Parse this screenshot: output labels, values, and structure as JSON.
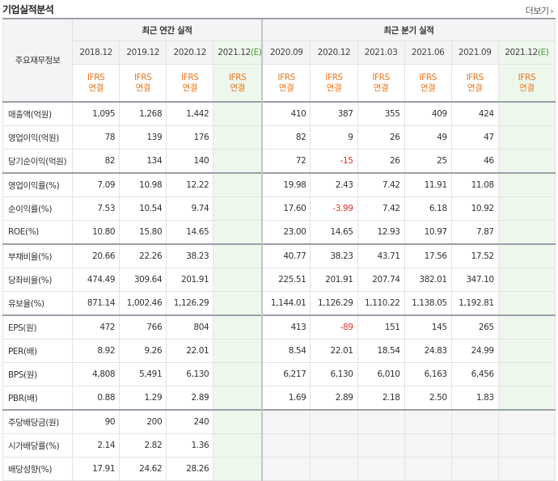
{
  "header": {
    "title": "기업실적분석",
    "more_label": "더보기"
  },
  "table": {
    "row_header_label": "주요재무정보",
    "annual_group_label": "최근 연간 실적",
    "quarter_group_label": "최근 분기 실적",
    "annual_periods": [
      {
        "label": "2018.12",
        "std1": "IFRS",
        "std2": "연결",
        "estimate": false
      },
      {
        "label": "2019.12",
        "std1": "IFRS",
        "std2": "연결",
        "estimate": false
      },
      {
        "label": "2020.12",
        "std1": "IFRS",
        "std2": "연결",
        "estimate": false
      },
      {
        "label": "2021.12",
        "est_mark": "(E)",
        "std1": "IFRS",
        "std2": "연결",
        "estimate": true
      }
    ],
    "quarter_periods": [
      {
        "label": "2020.09",
        "std1": "IFRS",
        "std2": "연결",
        "estimate": false
      },
      {
        "label": "2020.12",
        "std1": "IFRS",
        "std2": "연결",
        "estimate": false
      },
      {
        "label": "2021.03",
        "std1": "IFRS",
        "std2": "연결",
        "estimate": false
      },
      {
        "label": "2021.06",
        "std1": "IFRS",
        "std2": "연결",
        "estimate": false
      },
      {
        "label": "2021.09",
        "std1": "IFRS",
        "std2": "연결",
        "estimate": false
      },
      {
        "label": "2021.12",
        "est_mark": "(E)",
        "std1": "IFRS",
        "std2": "연결",
        "estimate": true
      }
    ],
    "rows": [
      {
        "label": "매출액(억원)",
        "annual": [
          "1,095",
          "1,268",
          "1,442",
          ""
        ],
        "quarter": [
          "410",
          "387",
          "355",
          "409",
          "424",
          ""
        ]
      },
      {
        "label": "영업이익(억원)",
        "annual": [
          "78",
          "139",
          "176",
          ""
        ],
        "quarter": [
          "82",
          "9",
          "26",
          "49",
          "47",
          ""
        ]
      },
      {
        "label": "당기순이익(억원)",
        "annual": [
          "82",
          "134",
          "140",
          ""
        ],
        "quarter": [
          "72",
          "-15",
          "26",
          "25",
          "46",
          ""
        ]
      },
      {
        "label": "영업이익률(%)",
        "annual": [
          "7.09",
          "10.98",
          "12.22",
          ""
        ],
        "quarter": [
          "19.98",
          "2.43",
          "7.42",
          "11.91",
          "11.08",
          ""
        ]
      },
      {
        "label": "순이익률(%)",
        "annual": [
          "7.53",
          "10.54",
          "9.74",
          ""
        ],
        "quarter": [
          "17.60",
          "-3.99",
          "7.42",
          "6.18",
          "10.92",
          ""
        ]
      },
      {
        "label": "ROE(%)",
        "annual": [
          "10.80",
          "15.80",
          "14.65",
          ""
        ],
        "quarter": [
          "23.00",
          "14.65",
          "12.93",
          "10.97",
          "7.87",
          ""
        ]
      },
      {
        "label": "부채비율(%)",
        "annual": [
          "20.66",
          "22.26",
          "38.23",
          ""
        ],
        "quarter": [
          "40.77",
          "38.23",
          "43.71",
          "17.56",
          "17.52",
          ""
        ]
      },
      {
        "label": "당좌비율(%)",
        "annual": [
          "474.49",
          "309.64",
          "201.91",
          ""
        ],
        "quarter": [
          "225.51",
          "201.91",
          "207.74",
          "382.01",
          "347.10",
          ""
        ]
      },
      {
        "label": "유보율(%)",
        "annual": [
          "871.14",
          "1,002.46",
          "1,126.29",
          ""
        ],
        "quarter": [
          "1,144.01",
          "1,126.29",
          "1,110.22",
          "1,138.05",
          "1,192.81",
          ""
        ]
      },
      {
        "label": "EPS(원)",
        "annual": [
          "472",
          "766",
          "804",
          ""
        ],
        "quarter": [
          "413",
          "-89",
          "151",
          "145",
          "265",
          ""
        ]
      },
      {
        "label": "PER(배)",
        "annual": [
          "8.92",
          "9.26",
          "22.01",
          ""
        ],
        "quarter": [
          "8.54",
          "22.01",
          "18.54",
          "24.83",
          "24.99",
          ""
        ]
      },
      {
        "label": "BPS(원)",
        "annual": [
          "4,808",
          "5,491",
          "6,130",
          ""
        ],
        "quarter": [
          "6,217",
          "6,130",
          "6,010",
          "6,163",
          "6,456",
          ""
        ]
      },
      {
        "label": "PBR(배)",
        "annual": [
          "0.88",
          "1.29",
          "2.89",
          ""
        ],
        "quarter": [
          "1.69",
          "2.89",
          "2.18",
          "2.50",
          "1.83",
          ""
        ]
      },
      {
        "label": "주당배당금(원)",
        "annual": [
          "90",
          "200",
          "240",
          ""
        ],
        "quarter": null
      },
      {
        "label": "시가배당률(%)",
        "annual": [
          "2.14",
          "2.82",
          "1.36",
          ""
        ],
        "quarter": null
      },
      {
        "label": "배당성향(%)",
        "annual": [
          "17.91",
          "24.62",
          "28.26",
          ""
        ],
        "quarter": null
      }
    ]
  }
}
